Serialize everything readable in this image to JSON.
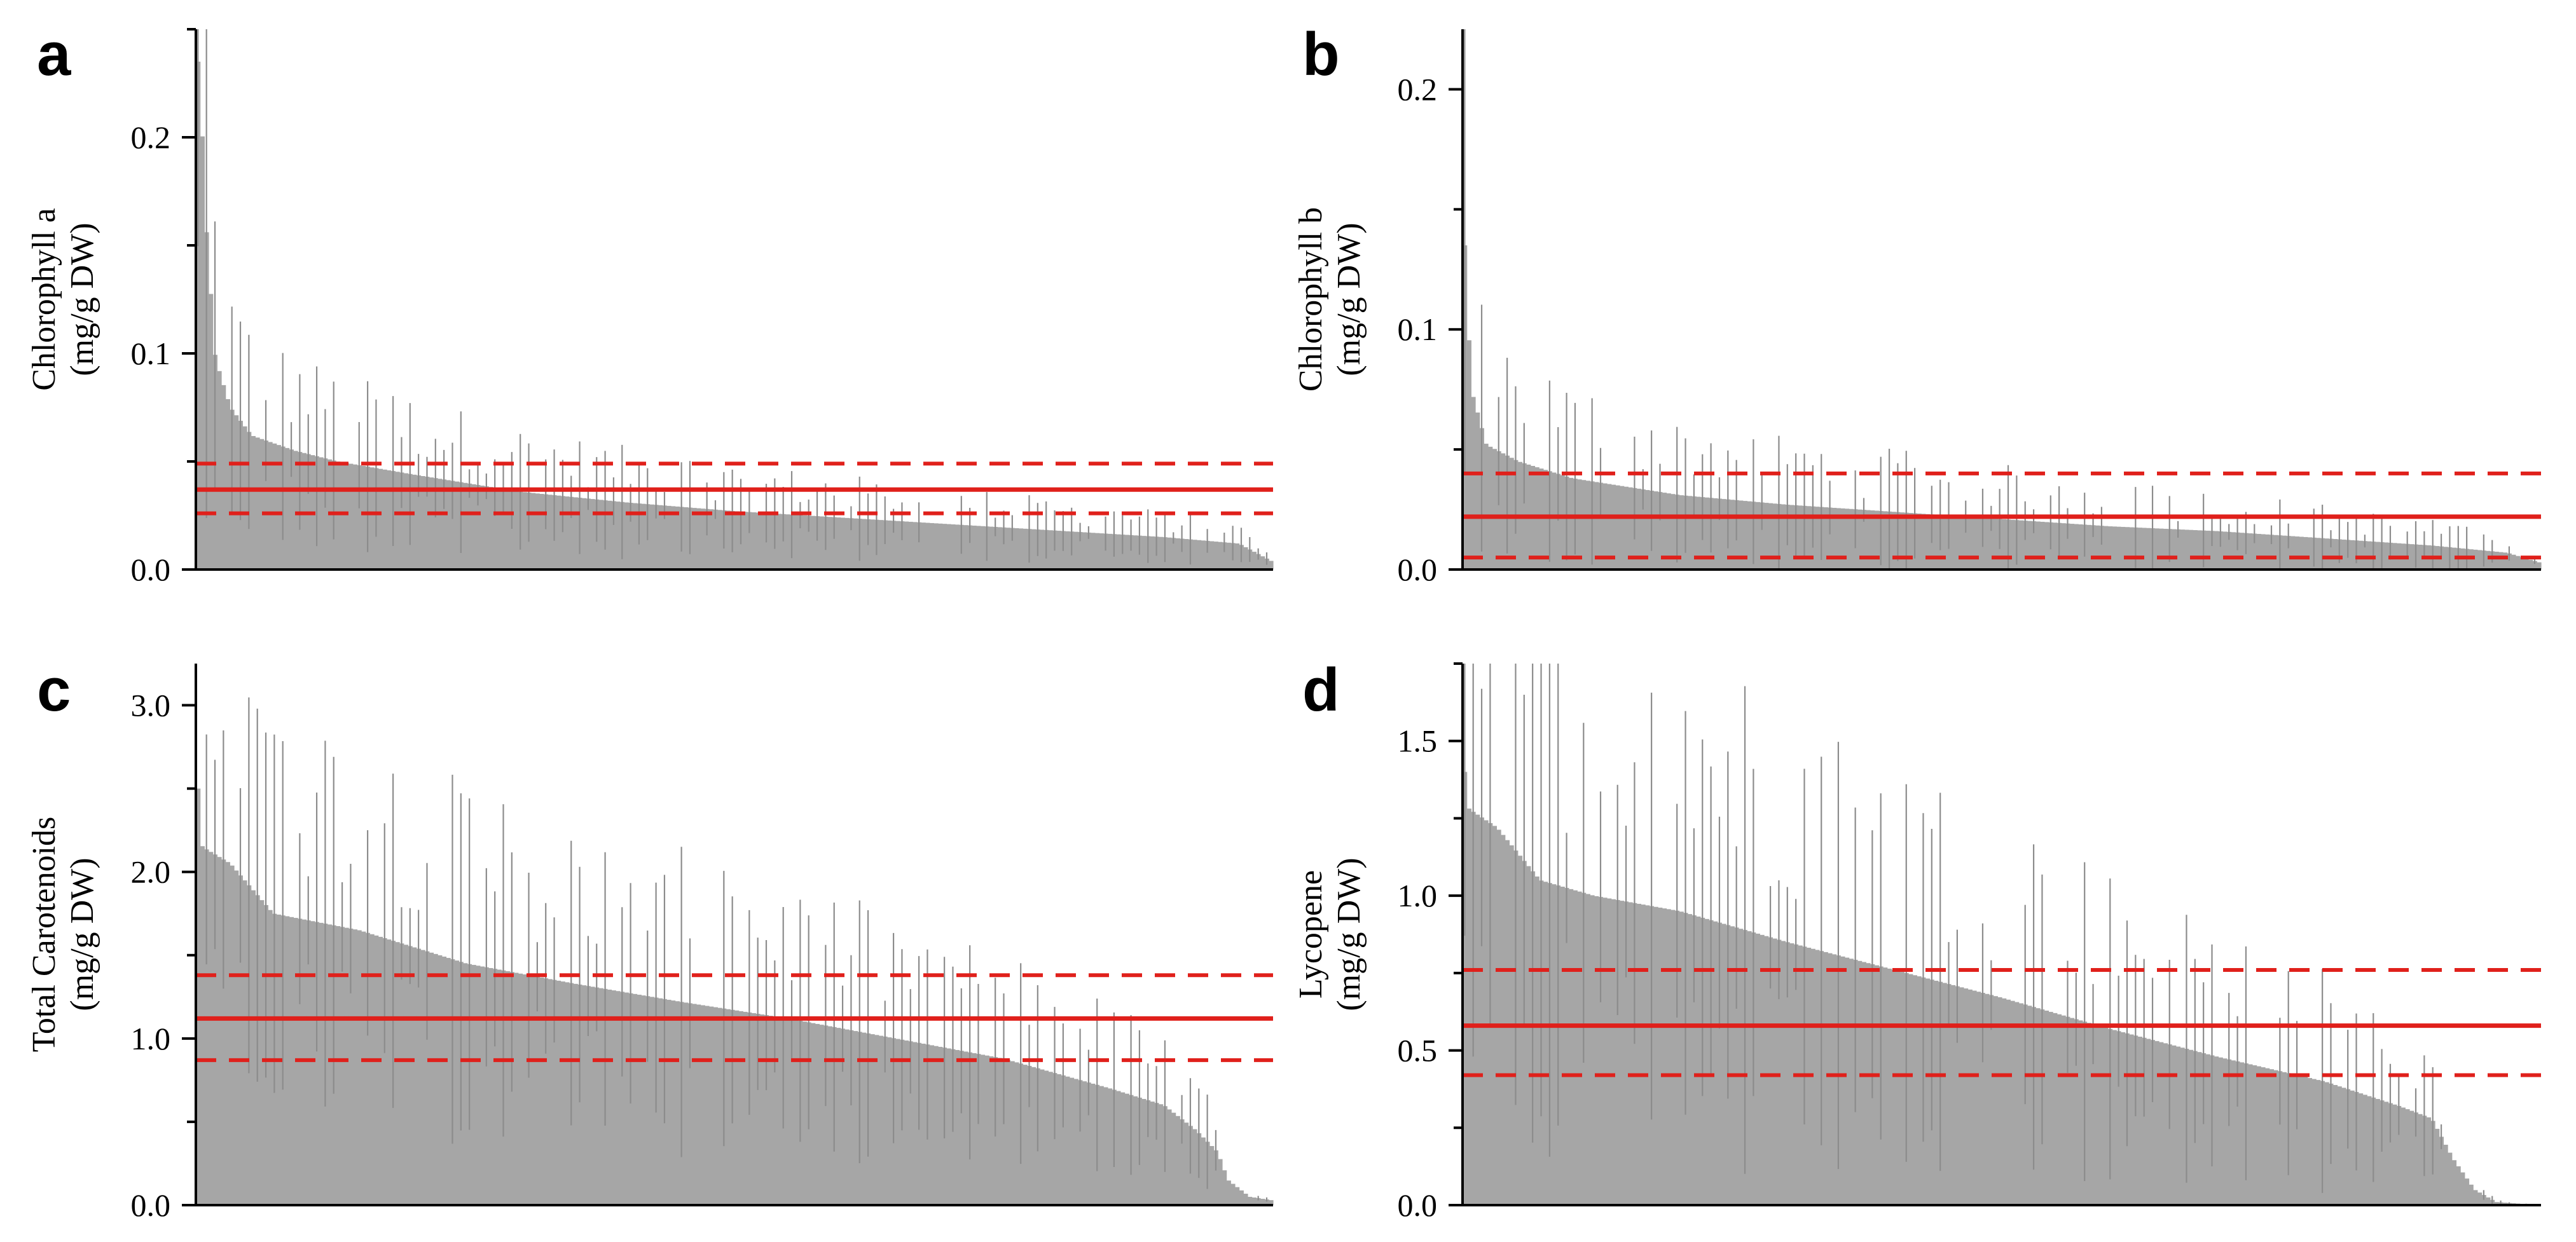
{
  "colors": {
    "bar": "#a6a6a6",
    "error_bar": "#8c8c8c",
    "mean_line": "#e0201b",
    "axis": "#000000"
  },
  "chart_data": [
    {
      "panel": "a",
      "type": "bar",
      "ylabel_line1": "Chlorophyll a",
      "ylabel_line2": "(mg/g DW)",
      "ylim": [
        0,
        0.25
      ],
      "yticks": [
        0.0,
        0.1,
        0.2
      ],
      "ytick_labels": [
        "0.0",
        "0.1",
        "0.2"
      ],
      "minor_ticks": [
        0.05,
        0.15,
        0.25
      ],
      "mean": 0.037,
      "band": [
        0.026,
        0.049
      ],
      "n_bars": 254,
      "profile": [
        [
          0,
          0.235
        ],
        [
          0.004,
          0.2
        ],
        [
          0.008,
          0.155
        ],
        [
          0.016,
          0.098
        ],
        [
          0.03,
          0.075
        ],
        [
          0.05,
          0.062
        ],
        [
          0.09,
          0.055
        ],
        [
          0.13,
          0.05
        ],
        [
          0.2,
          0.044
        ],
        [
          0.3,
          0.036
        ],
        [
          0.4,
          0.031
        ],
        [
          0.5,
          0.027
        ],
        [
          0.6,
          0.024
        ],
        [
          0.7,
          0.021
        ],
        [
          0.8,
          0.018
        ],
        [
          0.9,
          0.015
        ],
        [
          0.97,
          0.012
        ],
        [
          1.0,
          0.004
        ]
      ],
      "err_scale": 0.5
    },
    {
      "panel": "b",
      "type": "bar",
      "ylabel_line1": "Chlorophyll b",
      "ylabel_line2": "(mg/g DW)",
      "ylim": [
        0,
        0.225
      ],
      "yticks": [
        0.0,
        0.1,
        0.2
      ],
      "ytick_labels": [
        "0.0",
        "0.1",
        "0.2"
      ],
      "minor_ticks": [
        0.05,
        0.15
      ],
      "mean": 0.022,
      "band": [
        0.005,
        0.04
      ],
      "n_bars": 254,
      "profile": [
        [
          0,
          0.135
        ],
        [
          0.006,
          0.075
        ],
        [
          0.02,
          0.052
        ],
        [
          0.05,
          0.045
        ],
        [
          0.1,
          0.038
        ],
        [
          0.2,
          0.031
        ],
        [
          0.3,
          0.027
        ],
        [
          0.4,
          0.024
        ],
        [
          0.5,
          0.021
        ],
        [
          0.6,
          0.018
        ],
        [
          0.7,
          0.016
        ],
        [
          0.8,
          0.013
        ],
        [
          0.9,
          0.01
        ],
        [
          0.97,
          0.007
        ],
        [
          1.0,
          0.003
        ]
      ],
      "err_scale": 0.65
    },
    {
      "panel": "c",
      "type": "bar",
      "ylabel_line1": "Total Carotenoids",
      "ylabel_line2": "(mg/g DW)",
      "ylim": [
        0,
        3.25
      ],
      "yticks": [
        0.0,
        1.0,
        2.0,
        3.0
      ],
      "ytick_labels": [
        "0.0",
        "1.0",
        "2.0",
        "3.0"
      ],
      "minor_ticks": [
        0.5,
        1.5,
        2.5
      ],
      "mean": 1.12,
      "band": [
        0.87,
        1.38
      ],
      "n_bars": 254,
      "profile": [
        [
          0,
          2.5
        ],
        [
          0.004,
          2.15
        ],
        [
          0.03,
          2.05
        ],
        [
          0.07,
          1.75
        ],
        [
          0.15,
          1.65
        ],
        [
          0.25,
          1.45
        ],
        [
          0.35,
          1.33
        ],
        [
          0.45,
          1.22
        ],
        [
          0.55,
          1.12
        ],
        [
          0.65,
          1.0
        ],
        [
          0.75,
          0.88
        ],
        [
          0.85,
          0.7
        ],
        [
          0.9,
          0.6
        ],
        [
          0.93,
          0.45
        ],
        [
          0.95,
          0.32
        ],
        [
          0.96,
          0.15
        ],
        [
          0.98,
          0.05
        ],
        [
          1.0,
          0.03
        ]
      ],
      "err_scale": 0.45
    },
    {
      "panel": "d",
      "type": "bar",
      "ylabel_line1": "Lycopene",
      "ylabel_line2": "(mg/g DW)",
      "ylim": [
        0,
        1.75
      ],
      "yticks": [
        0.0,
        0.5,
        1.0,
        1.5
      ],
      "ytick_labels": [
        "0.0",
        "0.5",
        "1.0",
        "1.5"
      ],
      "minor_ticks": [
        0.25,
        0.75,
        1.25,
        1.75
      ],
      "mean": 0.58,
      "band": [
        0.42,
        0.76
      ],
      "n_bars": 254,
      "profile": [
        [
          0,
          1.4
        ],
        [
          0.004,
          1.28
        ],
        [
          0.03,
          1.22
        ],
        [
          0.07,
          1.05
        ],
        [
          0.12,
          1.0
        ],
        [
          0.2,
          0.95
        ],
        [
          0.3,
          0.85
        ],
        [
          0.4,
          0.76
        ],
        [
          0.5,
          0.67
        ],
        [
          0.6,
          0.57
        ],
        [
          0.7,
          0.48
        ],
        [
          0.8,
          0.4
        ],
        [
          0.87,
          0.32
        ],
        [
          0.9,
          0.28
        ],
        [
          0.92,
          0.15
        ],
        [
          0.94,
          0.05
        ],
        [
          0.96,
          0.01
        ],
        [
          1.0,
          0.0
        ]
      ],
      "err_scale": 0.55
    }
  ]
}
